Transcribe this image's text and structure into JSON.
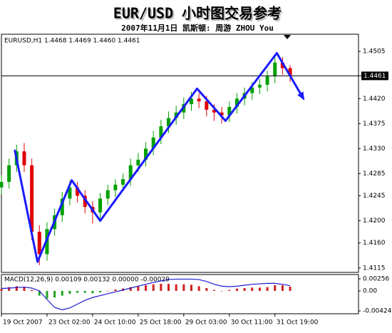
{
  "chart_data": [
    {
      "type": "candlestick",
      "title": "EUR/USD 小时图交易参考",
      "subtitle": "2007年11月1日  凯斯顿: 周游 ZHOU You",
      "header": "EURUSD,H1  1.4468 1.4469 1.4460 1.4461",
      "x": [
        0,
        4,
        8,
        12,
        16,
        20,
        24,
        28,
        32,
        36,
        40,
        44,
        48,
        52,
        56,
        60,
        64,
        68,
        72,
        76,
        80,
        84,
        88,
        92,
        96,
        100,
        104,
        108,
        112,
        116,
        120,
        124,
        128,
        132,
        136,
        140,
        144,
        148,
        152
      ],
      "open": [
        1.426,
        1.427,
        1.43,
        1.4325,
        1.43,
        1.418,
        1.414,
        1.4185,
        1.421,
        1.424,
        1.426,
        1.4245,
        1.4225,
        1.4215,
        1.424,
        1.4255,
        1.4265,
        1.4275,
        1.43,
        1.431,
        1.433,
        1.435,
        1.437,
        1.4385,
        1.4395,
        1.441,
        1.442,
        1.4415,
        1.44,
        1.4395,
        1.439,
        1.4405,
        1.442,
        1.443,
        1.444,
        1.4445,
        1.446,
        1.4485,
        1.4475
      ],
      "high": [
        1.4282,
        1.4312,
        1.4337,
        1.434,
        1.4312,
        1.4192,
        1.4197,
        1.4222,
        1.4252,
        1.4272,
        1.427,
        1.4255,
        1.4235,
        1.425,
        1.4265,
        1.4275,
        1.4285,
        1.4312,
        1.4322,
        1.4342,
        1.4362,
        1.4382,
        1.4397,
        1.4407,
        1.4422,
        1.4432,
        1.443,
        1.4425,
        1.441,
        1.4405,
        1.4415,
        1.443,
        1.444,
        1.445,
        1.4455,
        1.447,
        1.45,
        1.4495,
        1.448
      ],
      "low": [
        1.4248,
        1.4258,
        1.4288,
        1.4288,
        1.4165,
        1.412,
        1.4128,
        1.4173,
        1.4198,
        1.4228,
        1.4233,
        1.4213,
        1.4195,
        1.4203,
        1.4228,
        1.4243,
        1.4253,
        1.4263,
        1.4288,
        1.4298,
        1.4318,
        1.4338,
        1.4358,
        1.4373,
        1.4383,
        1.4398,
        1.4403,
        1.4388,
        1.438,
        1.4375,
        1.4378,
        1.4393,
        1.4408,
        1.4418,
        1.4428,
        1.4433,
        1.4448,
        1.4463,
        1.445
      ],
      "close": [
        1.427,
        1.43,
        1.4325,
        1.43,
        1.418,
        1.414,
        1.4185,
        1.421,
        1.424,
        1.426,
        1.4245,
        1.4225,
        1.4215,
        1.424,
        1.4255,
        1.4265,
        1.4275,
        1.43,
        1.431,
        1.433,
        1.435,
        1.437,
        1.4385,
        1.4395,
        1.441,
        1.442,
        1.4415,
        1.44,
        1.4395,
        1.439,
        1.4405,
        1.442,
        1.443,
        1.444,
        1.4445,
        1.446,
        1.4485,
        1.4475,
        1.4461
      ],
      "colors": {
        "up": "#00a000",
        "down": "#e00000"
      },
      "zigzag": {
        "color": "#1a1aff",
        "x": [
          7,
          19,
          37,
          52,
          103,
          118,
          145,
          151,
          159
        ],
        "values": [
          1.4328,
          1.4126,
          1.4273,
          1.42,
          1.4438,
          1.438,
          1.4502,
          1.4467,
          1.442
        ]
      },
      "last_price": 1.4461,
      "xlim": [
        0,
        188
      ],
      "ylim": [
        1.4107,
        1.4536
      ],
      "yticks": [
        1.4505,
        {
          "value": 1.442,
          "label": "1.4420"
        },
        1.4375,
        {
          "value": 1.433,
          "label": "1.4330"
        },
        1.4285,
        1.4245,
        {
          "value": 1.42,
          "label": "1.4200"
        },
        {
          "value": 1.416,
          "label": "1.4160"
        },
        1.4115
      ]
    },
    {
      "type": "macd",
      "header": "MACD(12,26,9) 0.00109 0.00132 0.00000 -0.00029",
      "x": [
        0,
        4,
        8,
        12,
        16,
        20,
        24,
        28,
        32,
        36,
        40,
        44,
        48,
        52,
        56,
        60,
        64,
        68,
        72,
        76,
        80,
        84,
        88,
        92,
        96,
        100,
        104,
        108,
        112,
        116,
        120,
        124,
        128,
        132,
        136,
        140,
        144,
        148,
        152
      ],
      "series": [
        {
          "type": "bar",
          "colors": {
            "up": "#d02020",
            "down": "#20a020"
          },
          "values": [
            0.0004,
            0.0008,
            0.001,
            0.0009,
            0.0002,
            -0.001,
            -0.0016,
            -0.0014,
            -0.001,
            -0.0006,
            -0.0004,
            -0.0004,
            -0.0005,
            -0.0003,
            0,
            0.0003,
            0.0005,
            0.0008,
            0.001,
            0.0012,
            0.0014,
            0.0015,
            0.0015,
            0.0014,
            0.0014,
            0.0013,
            0.001,
            0.0006,
            0.0002,
            0,
            0.0002,
            0.0005,
            0.0006,
            0.0007,
            0.0007,
            0.0008,
            0.0012,
            0.0012,
            0.0009
          ]
        },
        {
          "type": "line",
          "color": "#1a1ad0",
          "values": [
            0.0005,
            0.0006,
            0.0007,
            0.0008,
            0.0006,
            0,
            -0.0018,
            -0.0035,
            -0.004,
            -0.0036,
            -0.0028,
            -0.002,
            -0.0014,
            -0.001,
            -0.0006,
            -0.0002,
            0.0002,
            0.0006,
            0.001,
            0.0014,
            0.0018,
            0.0021,
            0.0024,
            0.0025,
            0.0025,
            0.0025,
            0.0024,
            0.002,
            0.0014,
            0.001,
            0.0009,
            0.001,
            0.0012,
            0.0014,
            0.0015,
            0.0016,
            0.0016,
            0.0014,
            0.0011
          ]
        }
      ],
      "xlim": [
        0,
        188
      ],
      "ylim": [
        -0.00484,
        0.00347
      ],
      "yticks": [
        0.00256,
        {
          "value": 0,
          "label": "0.00"
        },
        -0.00424
      ],
      "xticks": [
        {
          "value": 0,
          "label": "19 Oct 2007"
        },
        {
          "value": 24,
          "label": "23 Oct 02:00"
        },
        {
          "value": 48,
          "label": "24 Oct 10:00"
        },
        {
          "value": 72,
          "label": "25 Oct 18:00"
        },
        {
          "value": 96,
          "label": "29 Oct 03:00"
        },
        {
          "value": 120,
          "label": "30 Oct 11:00"
        },
        {
          "value": 144,
          "label": "31 Oct 19:00"
        }
      ]
    }
  ]
}
